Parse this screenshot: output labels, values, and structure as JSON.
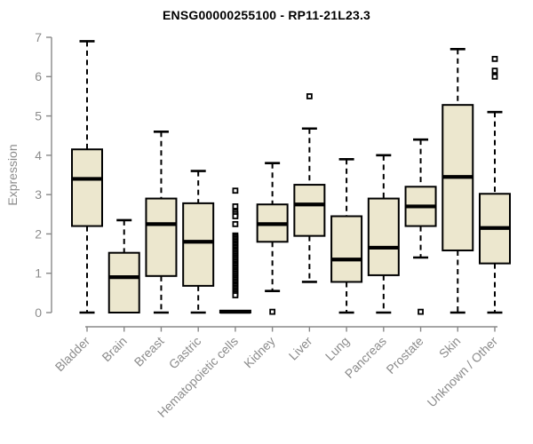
{
  "chart_data": {
    "type": "boxplot",
    "title": "ENSG00000255100 - RP11-21L23.3",
    "ylabel": "Expression",
    "xlabel": "",
    "ylim": [
      0,
      7
    ],
    "yticks": [
      0,
      1,
      2,
      3,
      4,
      5,
      6,
      7
    ],
    "grid": false,
    "legend": "none",
    "colors": {
      "box_fill": "#ECE7CE",
      "box_border": "#000000",
      "median": "#000000",
      "whisker": "#000000",
      "axis": "#888888",
      "tick_label": "#8c8c8c",
      "title": "#000000"
    },
    "categories": [
      "Bladder",
      "Brain",
      "Breast",
      "Gastric",
      "Hematopoietic cells",
      "Kidney",
      "Liver",
      "Lung",
      "Pancreas",
      "Prostate",
      "Skin",
      "Unknown / Other"
    ],
    "series": [
      {
        "name": "Bladder",
        "min": 0.0,
        "q1": 2.2,
        "median": 3.4,
        "q3": 4.15,
        "max": 6.9,
        "outliers": []
      },
      {
        "name": "Brain",
        "min": 0.0,
        "q1": 0.0,
        "median": 0.9,
        "q3": 1.52,
        "max": 2.35,
        "outliers": []
      },
      {
        "name": "Breast",
        "min": 0.0,
        "q1": 0.93,
        "median": 2.25,
        "q3": 2.9,
        "max": 4.6,
        "outliers": []
      },
      {
        "name": "Gastric",
        "min": 0.0,
        "q1": 0.68,
        "median": 1.8,
        "q3": 2.78,
        "max": 3.6,
        "outliers": []
      },
      {
        "name": "Hematopoietic cells",
        "min": 0.0,
        "q1": 0.0,
        "median": 0.02,
        "q3": 0.05,
        "max": 0.05,
        "outliers": [
          3.1,
          2.7,
          2.55,
          2.5,
          2.45,
          2.25,
          1.96,
          1.92,
          1.88,
          1.84,
          1.8,
          1.76,
          1.72,
          1.68,
          1.64,
          1.6,
          1.56,
          1.52,
          1.48,
          1.44,
          1.4,
          1.36,
          1.32,
          1.28,
          1.24,
          1.2,
          1.16,
          1.12,
          1.08,
          1.04,
          1.0,
          0.96,
          0.92,
          0.88,
          0.84,
          0.8,
          0.76,
          0.72,
          0.68,
          0.64,
          0.6,
          0.56,
          0.52,
          0.48,
          0.44
        ]
      },
      {
        "name": "Kidney",
        "min": 0.55,
        "q1": 1.8,
        "median": 2.25,
        "q3": 2.75,
        "max": 3.8,
        "outliers": [
          0.02
        ]
      },
      {
        "name": "Liver",
        "min": 0.78,
        "q1": 1.95,
        "median": 2.75,
        "q3": 3.25,
        "max": 4.68,
        "outliers": [
          5.5
        ]
      },
      {
        "name": "Lung",
        "min": 0.0,
        "q1": 0.78,
        "median": 1.35,
        "q3": 2.45,
        "max": 3.9,
        "outliers": []
      },
      {
        "name": "Pancreas",
        "min": 0.0,
        "q1": 0.95,
        "median": 1.65,
        "q3": 2.9,
        "max": 4.0,
        "outliers": []
      },
      {
        "name": "Prostate",
        "min": 1.4,
        "q1": 2.2,
        "median": 2.7,
        "q3": 3.2,
        "max": 4.4,
        "outliers": [
          0.02
        ]
      },
      {
        "name": "Skin",
        "min": 0.0,
        "q1": 1.58,
        "median": 3.45,
        "q3": 5.28,
        "max": 6.7,
        "outliers": []
      },
      {
        "name": "Unknown / Other",
        "min": 0.0,
        "q1": 1.25,
        "median": 2.15,
        "q3": 3.02,
        "max": 5.1,
        "outliers": [
          6.45,
          6.15,
          6.0
        ]
      }
    ]
  }
}
